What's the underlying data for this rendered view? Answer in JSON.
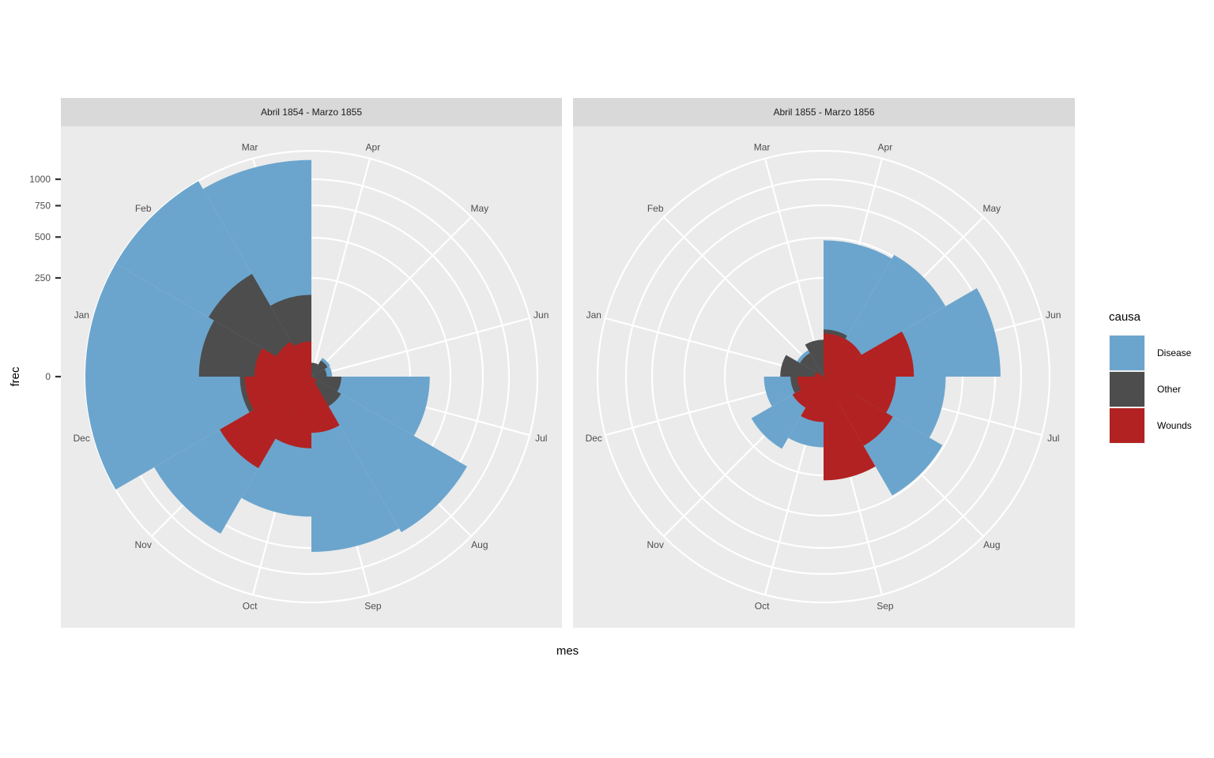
{
  "chart_data": {
    "type": "polar-area",
    "xlabel": "mes",
    "ylabel": "frec",
    "y_scale": "sqrt",
    "y_ticks": [
      0,
      250,
      500,
      750,
      1000
    ],
    "months": [
      "Jan",
      "Feb",
      "Mar",
      "Apr",
      "May",
      "Jun",
      "Jul",
      "Aug",
      "Sep",
      "Oct",
      "Nov",
      "Dec"
    ],
    "stacking": "overlapping",
    "legend": {
      "title": "causa",
      "position": "right",
      "entries": [
        {
          "name": "Disease",
          "color": "#6ba5cd"
        },
        {
          "name": "Other",
          "color": "#4d4d4d"
        },
        {
          "name": "Wounds",
          "color": "#b22222"
        }
      ]
    },
    "panels": [
      {
        "title": "Abril 1854 - Marzo 1855",
        "data": [
          {
            "month": "Apr",
            "Disease": 1,
            "Other": 5,
            "Wounds": 0
          },
          {
            "month": "May",
            "Disease": 12,
            "Other": 9,
            "Wounds": 0
          },
          {
            "month": "Jun",
            "Disease": 11,
            "Other": 6,
            "Wounds": 0
          },
          {
            "month": "Jul",
            "Disease": 359,
            "Other": 23,
            "Wounds": 0
          },
          {
            "month": "Aug",
            "Disease": 828,
            "Other": 30,
            "Wounds": 1
          },
          {
            "month": "Sep",
            "Disease": 788,
            "Other": 70,
            "Wounds": 81
          },
          {
            "month": "Oct",
            "Disease": 503,
            "Other": 128,
            "Wounds": 132
          },
          {
            "month": "Nov",
            "Disease": 844,
            "Other": 106,
            "Wounds": 287
          },
          {
            "month": "Dec",
            "Disease": 1725,
            "Other": 131,
            "Wounds": 114
          },
          {
            "month": "Jan",
            "Disease": 2761,
            "Other": 324,
            "Wounds": 83
          },
          {
            "month": "Feb",
            "Disease": 2120,
            "Other": 361,
            "Wounds": 42
          },
          {
            "month": "Mar",
            "Disease": 1205,
            "Other": 172,
            "Wounds": 32
          }
        ]
      },
      {
        "title": "Abril 1855 - Marzo 1856",
        "data": [
          {
            "month": "Apr",
            "Disease": 477,
            "Other": 57,
            "Wounds": 48
          },
          {
            "month": "May",
            "Disease": 508,
            "Other": 37,
            "Wounds": 49
          },
          {
            "month": "Jun",
            "Disease": 802,
            "Other": 31,
            "Wounds": 209
          },
          {
            "month": "Jul",
            "Disease": 382,
            "Other": 33,
            "Wounds": 134
          },
          {
            "month": "Aug",
            "Disease": 483,
            "Other": 25,
            "Wounds": 164
          },
          {
            "month": "Sep",
            "Disease": 189,
            "Other": 20,
            "Wounds": 276
          },
          {
            "month": "Oct",
            "Disease": 128,
            "Other": 18,
            "Wounds": 53
          },
          {
            "month": "Nov",
            "Disease": 178,
            "Other": 32,
            "Wounds": 33
          },
          {
            "month": "Dec",
            "Disease": 91,
            "Other": 28,
            "Wounds": 18
          },
          {
            "month": "Jan",
            "Disease": 42,
            "Other": 48,
            "Wounds": 2
          },
          {
            "month": "Feb",
            "Disease": 24,
            "Other": 19,
            "Wounds": 0
          },
          {
            "month": "Mar",
            "Disease": 15,
            "Other": 35,
            "Wounds": 0
          }
        ]
      }
    ]
  }
}
